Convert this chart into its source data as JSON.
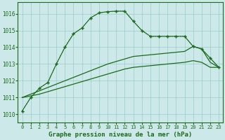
{
  "title": "Graphe pression niveau de la mer (hPa)",
  "bg_color": "#cce8e8",
  "grid_color": "#99cccc",
  "line_color": "#1a6b1a",
  "ylim": [
    1009.5,
    1016.7
  ],
  "xlim": [
    -0.5,
    23.5
  ],
  "yticks": [
    1010,
    1011,
    1012,
    1013,
    1014,
    1015,
    1016
  ],
  "xticks": [
    0,
    1,
    2,
    3,
    4,
    5,
    6,
    7,
    8,
    9,
    10,
    11,
    12,
    13,
    14,
    15,
    16,
    17,
    18,
    19,
    20,
    21,
    22,
    23
  ],
  "line_dotted_x": [
    0,
    1,
    2,
    3,
    4,
    5,
    6,
    7,
    8,
    9,
    10,
    11,
    12,
    13,
    14,
    15,
    16,
    17,
    18,
    19,
    20,
    21,
    22,
    23
  ],
  "line_dotted_y": [
    1010.2,
    1011.0,
    1011.55,
    1011.9,
    1013.0,
    1014.0,
    1014.8,
    1015.15,
    1015.75,
    1016.05,
    1016.12,
    1016.15,
    1016.15,
    1015.55,
    1015.0,
    1014.65,
    1014.65,
    1014.65,
    1014.65,
    1014.65,
    1014.05,
    1013.9,
    1013.35,
    1012.8
  ],
  "line_solid_markers_x": [
    0,
    1,
    2,
    3,
    4,
    5,
    6,
    7,
    8,
    9,
    10,
    11,
    12,
    13,
    14,
    15,
    16,
    17,
    18,
    19,
    20,
    21,
    22,
    23
  ],
  "line_solid_markers_y": [
    1010.2,
    1011.0,
    1011.55,
    1011.9,
    1013.0,
    1014.0,
    1014.8,
    1015.15,
    1015.75,
    1016.05,
    1016.12,
    1016.15,
    1016.15,
    1015.55,
    1015.0,
    1014.65,
    1014.65,
    1014.65,
    1014.65,
    1014.65,
    1014.05,
    1013.9,
    1013.35,
    1012.8
  ],
  "line_upper_x": [
    0,
    1,
    2,
    3,
    4,
    5,
    6,
    7,
    8,
    9,
    10,
    11,
    12,
    13,
    14,
    15,
    16,
    17,
    18,
    19,
    20,
    21,
    22,
    23
  ],
  "line_upper_y": [
    1011.0,
    1011.2,
    1011.4,
    1011.6,
    1011.8,
    1012.0,
    1012.2,
    1012.4,
    1012.6,
    1012.8,
    1013.0,
    1013.15,
    1013.3,
    1013.45,
    1013.5,
    1013.55,
    1013.6,
    1013.65,
    1013.7,
    1013.75,
    1014.05,
    1013.9,
    1013.1,
    1012.8
  ],
  "line_lower_x": [
    0,
    1,
    2,
    3,
    4,
    5,
    6,
    7,
    8,
    9,
    10,
    11,
    12,
    13,
    14,
    15,
    16,
    17,
    18,
    19,
    20,
    21,
    22,
    23
  ],
  "line_lower_y": [
    1011.0,
    1011.1,
    1011.2,
    1011.35,
    1011.5,
    1011.65,
    1011.8,
    1011.95,
    1012.1,
    1012.25,
    1012.4,
    1012.55,
    1012.7,
    1012.8,
    1012.85,
    1012.9,
    1012.95,
    1013.0,
    1013.05,
    1013.1,
    1013.2,
    1013.1,
    1012.8,
    1012.8
  ]
}
